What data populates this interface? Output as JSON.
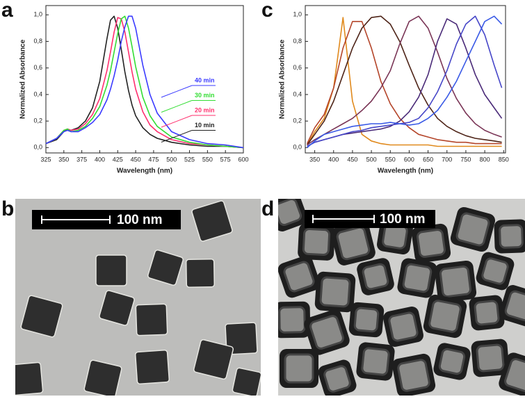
{
  "panel_labels": [
    "a",
    "b",
    "c",
    "d"
  ],
  "scale_bars": [
    "100 nm",
    "100 nm"
  ],
  "chart_data": [
    {
      "type": "line",
      "x_label": "Wavelength (nm)",
      "y_label": "Normalized Absorbance",
      "xlim": [
        325,
        600
      ],
      "ylim": [
        -0.04,
        1.07
      ],
      "xticks": [
        325,
        350,
        375,
        400,
        425,
        450,
        475,
        500,
        525,
        550,
        575,
        600
      ],
      "yticks": [
        {
          "value": 0,
          "label": "0,0"
        },
        {
          "value": 0.2,
          "label": "0,2"
        },
        {
          "value": 0.4,
          "label": "0,4"
        },
        {
          "value": 0.6,
          "label": "0,6"
        },
        {
          "value": 0.8,
          "label": "0,8"
        },
        {
          "value": 1,
          "label": "1,0"
        }
      ],
      "x": [
        325,
        340,
        350,
        355,
        360,
        370,
        380,
        390,
        400,
        410,
        415,
        420,
        425,
        430,
        435,
        440,
        445,
        450,
        460,
        470,
        480,
        500,
        525,
        550,
        575,
        600
      ],
      "series": [
        {
          "name": "10 min",
          "color": "#222222",
          "values": [
            0.03,
            0.06,
            0.12,
            0.14,
            0.13,
            0.15,
            0.2,
            0.3,
            0.5,
            0.82,
            0.96,
            0.99,
            0.9,
            0.74,
            0.57,
            0.43,
            0.32,
            0.24,
            0.15,
            0.1,
            0.07,
            0.04,
            0.02,
            0.01,
            0.01,
            0
          ]
        },
        {
          "name": "20 min",
          "color": "#ff2f6e",
          "values": [
            0.03,
            0.07,
            0.13,
            0.14,
            0.13,
            0.14,
            0.18,
            0.25,
            0.37,
            0.58,
            0.72,
            0.87,
            0.98,
            0.97,
            0.87,
            0.72,
            0.57,
            0.44,
            0.27,
            0.17,
            0.12,
            0.06,
            0.03,
            0.02,
            0.01,
            0
          ]
        },
        {
          "name": "30 min",
          "color": "#33dd33",
          "values": [
            0.03,
            0.07,
            0.13,
            0.14,
            0.12,
            0.13,
            0.16,
            0.22,
            0.31,
            0.47,
            0.58,
            0.72,
            0.86,
            0.97,
            0.99,
            0.9,
            0.76,
            0.61,
            0.38,
            0.24,
            0.16,
            0.08,
            0.04,
            0.02,
            0.01,
            0
          ]
        },
        {
          "name": "40 min",
          "color": "#3a3aff",
          "values": [
            0.03,
            0.07,
            0.12,
            0.13,
            0.12,
            0.12,
            0.15,
            0.19,
            0.25,
            0.36,
            0.44,
            0.54,
            0.66,
            0.8,
            0.91,
            0.99,
            0.99,
            0.9,
            0.62,
            0.4,
            0.26,
            0.12,
            0.06,
            0.03,
            0.02,
            0
          ]
        }
      ]
    },
    {
      "type": "line",
      "x_label": "Wavelength (nm)",
      "y_label": "Normalized Absorbance",
      "xlim": [
        325,
        855
      ],
      "ylim": [
        -0.04,
        1.07
      ],
      "xticks": [
        350,
        400,
        450,
        500,
        550,
        600,
        650,
        700,
        750,
        800,
        850
      ],
      "yticks": [
        {
          "value": 0,
          "label": "0,0"
        },
        {
          "value": 0.2,
          "label": "0,2"
        },
        {
          "value": 0.4,
          "label": "0,4"
        },
        {
          "value": 0.6,
          "label": "0,6"
        },
        {
          "value": 0.8,
          "label": "0,8"
        },
        {
          "value": 1,
          "label": "1,0"
        }
      ],
      "x": [
        330,
        350,
        375,
        400,
        425,
        450,
        475,
        500,
        525,
        550,
        575,
        600,
        625,
        650,
        675,
        700,
        725,
        750,
        775,
        800,
        825,
        845
      ],
      "series": [
        {
          "color": "#e0891c",
          "values": [
            0.02,
            0.12,
            0.22,
            0.45,
            0.98,
            0.35,
            0.1,
            0.05,
            0.03,
            0.02,
            0.02,
            0.02,
            0.02,
            0.02,
            0.01,
            0.01,
            0.01,
            0.01,
            0.01,
            0.01,
            0.01,
            0.01
          ]
        },
        {
          "color": "#b4452a",
          "values": [
            0.03,
            0.15,
            0.25,
            0.45,
            0.75,
            0.95,
            0.95,
            0.75,
            0.5,
            0.33,
            0.22,
            0.15,
            0.1,
            0.08,
            0.06,
            0.05,
            0.04,
            0.04,
            0.03,
            0.03,
            0.03,
            0.03
          ]
        },
        {
          "color": "#4e2418",
          "values": [
            0.02,
            0.1,
            0.2,
            0.35,
            0.55,
            0.75,
            0.9,
            0.98,
            0.99,
            0.93,
            0.8,
            0.62,
            0.45,
            0.32,
            0.22,
            0.16,
            0.12,
            0.09,
            0.07,
            0.06,
            0.05,
            0.04
          ]
        },
        {
          "color": "#7a3556",
          "values": [
            0.02,
            0.06,
            0.1,
            0.14,
            0.18,
            0.22,
            0.28,
            0.35,
            0.45,
            0.58,
            0.78,
            0.95,
            0.99,
            0.9,
            0.72,
            0.52,
            0.37,
            0.26,
            0.18,
            0.13,
            0.1,
            0.08
          ]
        },
        {
          "color": "#4a2a78",
          "values": [
            0.01,
            0.04,
            0.06,
            0.08,
            0.1,
            0.11,
            0.12,
            0.13,
            0.14,
            0.16,
            0.2,
            0.27,
            0.38,
            0.55,
            0.8,
            0.97,
            0.93,
            0.75,
            0.55,
            0.4,
            0.3,
            0.22
          ]
        },
        {
          "color": "#4646c8",
          "values": [
            0.01,
            0.04,
            0.06,
            0.08,
            0.1,
            0.12,
            0.13,
            0.15,
            0.16,
            0.17,
            0.18,
            0.19,
            0.22,
            0.3,
            0.42,
            0.58,
            0.78,
            0.93,
            0.99,
            0.85,
            0.62,
            0.45
          ]
        },
        {
          "color": "#3a5ae6",
          "values": [
            0,
            0.05,
            0.1,
            0.12,
            0.14,
            0.16,
            0.17,
            0.18,
            0.18,
            0.19,
            0.18,
            0.17,
            0.18,
            0.22,
            0.28,
            0.38,
            0.5,
            0.65,
            0.8,
            0.95,
            0.99,
            0.93
          ]
        }
      ]
    }
  ]
}
